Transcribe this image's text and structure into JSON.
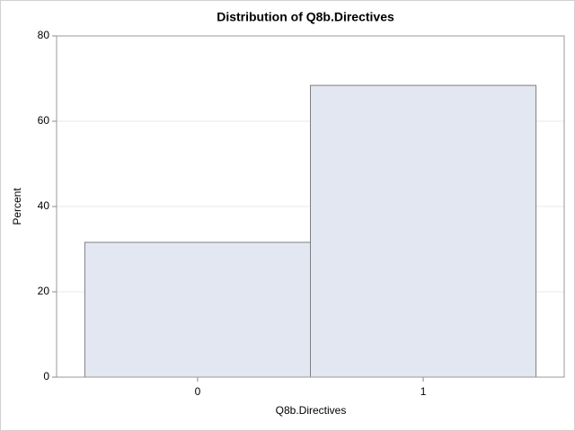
{
  "chart_data": {
    "type": "histogram",
    "title": "Distribution of Q8b.Directives",
    "x_label": "Q8b.Directives",
    "y_label": "Percent",
    "bins": [
      -0.5,
      0.5,
      1.5
    ],
    "values": [
      31.6,
      68.4
    ],
    "color": "#e3e7f1",
    "edge_color": "#7f7f7f",
    "xlim": [
      -0.625,
      1.625
    ],
    "xticks": [
      0,
      1
    ],
    "ylim": [
      0,
      80
    ],
    "yticks": [
      0,
      20,
      40,
      60,
      80
    ],
    "grid": true
  }
}
